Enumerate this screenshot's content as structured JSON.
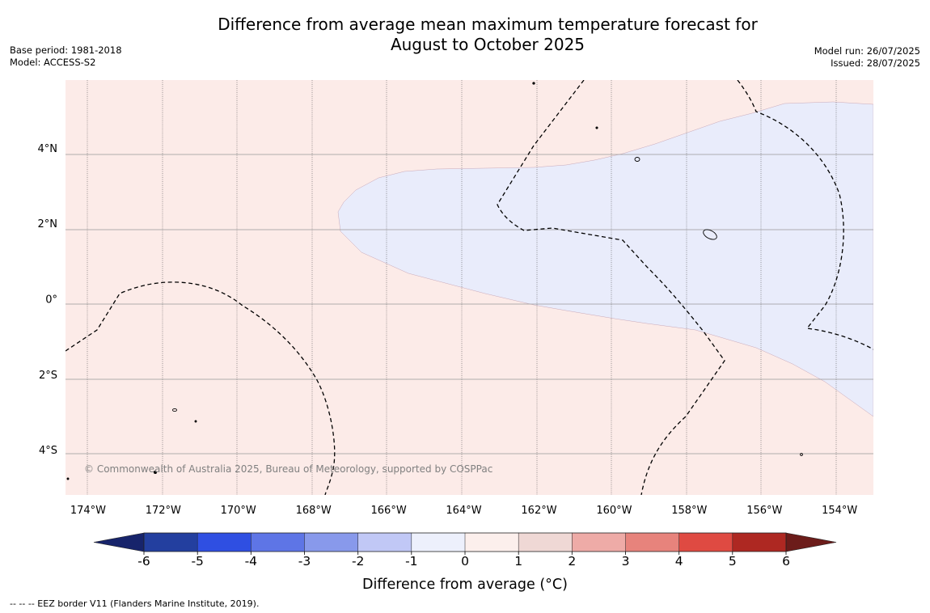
{
  "title": {
    "line1": "Difference from average mean maximum temperature forecast for",
    "line2": "August to October 2025"
  },
  "meta_left": {
    "base_period": "Base period: 1981-2018",
    "model": "Model: ACCESS-S2"
  },
  "meta_right": {
    "model_run": "Model run: 26/07/2025",
    "issued": "Issued: 28/07/2025"
  },
  "map": {
    "lon_range": [
      -174.6,
      -153.1
    ],
    "lat_range": [
      -5.2,
      5.8
    ],
    "lon_ticks": [
      {
        "value": -174,
        "label": "174°W"
      },
      {
        "value": -172,
        "label": "172°W"
      },
      {
        "value": -170,
        "label": "170°W"
      },
      {
        "value": -168,
        "label": "168°W"
      },
      {
        "value": -166,
        "label": "166°W"
      },
      {
        "value": -164,
        "label": "164°W"
      },
      {
        "value": -162,
        "label": "162°W"
      },
      {
        "value": -160,
        "label": "160°W"
      },
      {
        "value": -158,
        "label": "158°W"
      },
      {
        "value": -156,
        "label": "156°W"
      },
      {
        "value": -154,
        "label": "154°W"
      }
    ],
    "lat_ticks": [
      {
        "value": 4,
        "label": "4°N"
      },
      {
        "value": 2,
        "label": "2°N"
      },
      {
        "value": 0,
        "label": "0°"
      },
      {
        "value": -2,
        "label": "2°S"
      },
      {
        "value": -4,
        "label": "4°S"
      }
    ],
    "background_fill": "#fcebe8",
    "cool_region_fill": "#e9ecfb",
    "copyright": "© Commonwealth of Australia 2025, Bureau of Meteorology, supported by COSPPac"
  },
  "colorbar": {
    "label": "Difference from average (°C)",
    "ticks": [
      "-6",
      "-5",
      "-4",
      "-3",
      "-2",
      "-1",
      "0",
      "1",
      "2",
      "3",
      "4",
      "5",
      "6"
    ],
    "bins": [
      "#233f9f",
      "#2f4fe2",
      "#5e75e6",
      "#8899eb",
      "#c1c8f6",
      "#edf0fc",
      "#fcefec",
      "#efd8d5",
      "#eeaba7",
      "#e7837c",
      "#df4a42",
      "#ae2822"
    ],
    "extend_low": "#17246b",
    "extend_high": "#6c1c1a"
  },
  "footnote": "--  --  -- EEZ border V11 (Flanders Marine Institute, 2019)."
}
